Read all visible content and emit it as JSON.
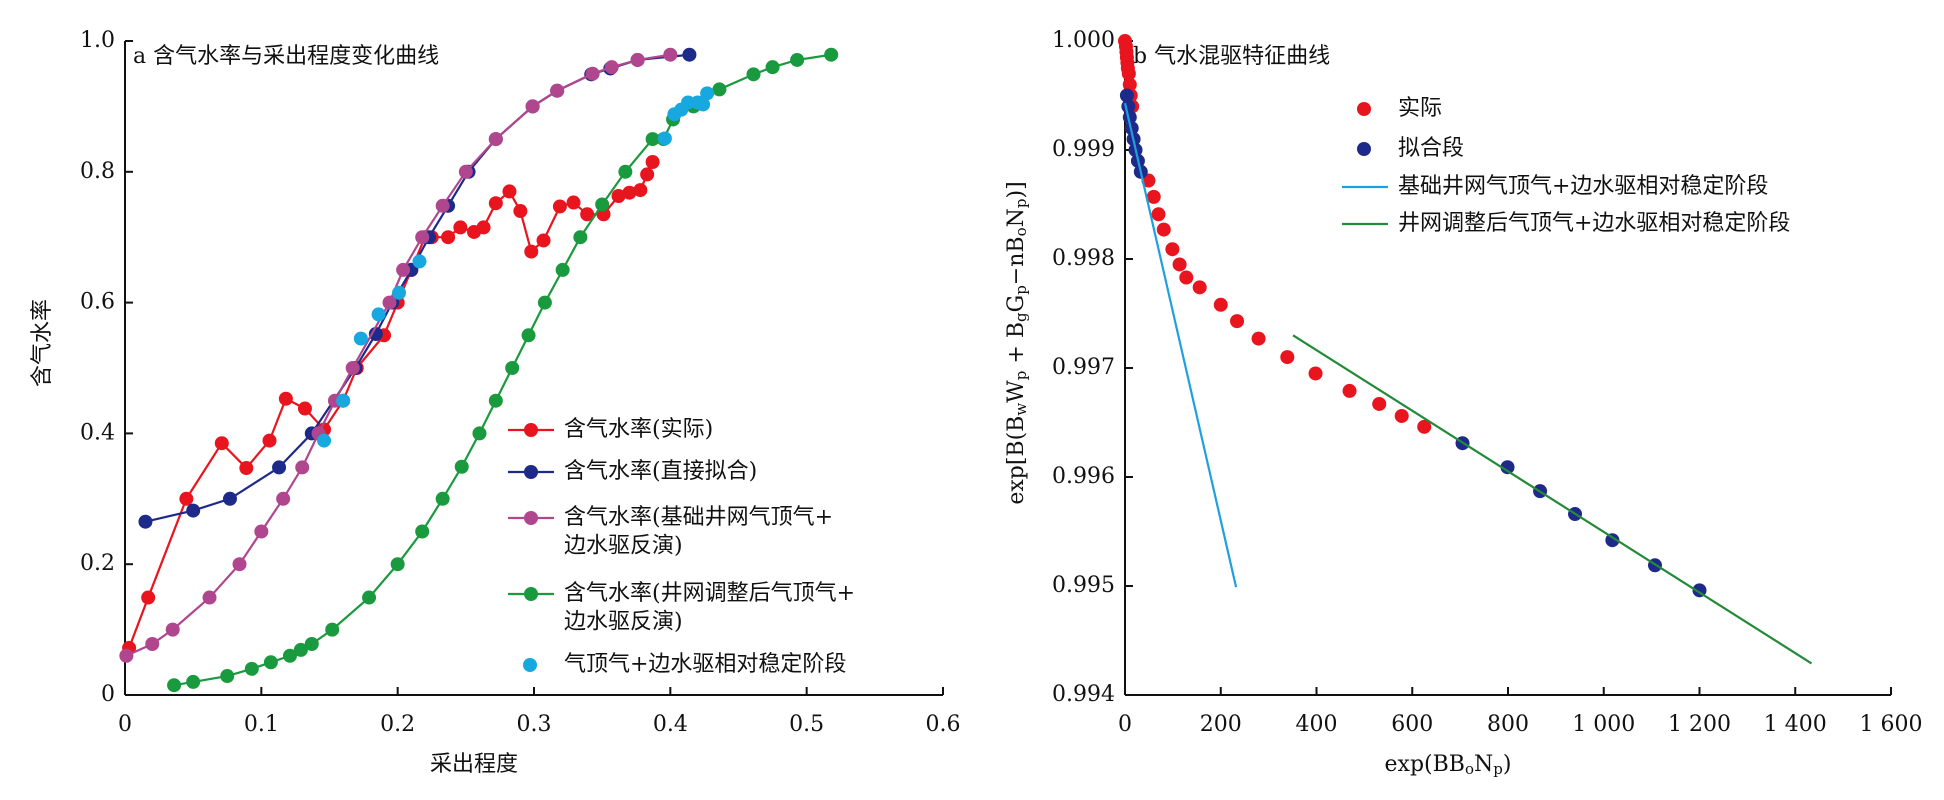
{
  "chart_data": [
    {
      "type": "line",
      "title": "a 含气水率与采出程度变化曲线",
      "xlabel": "采出程度",
      "ylabel": "含气水率",
      "xlim": [
        0,
        0.6
      ],
      "ylim": [
        0,
        1
      ],
      "xticks": [
        0,
        0.1,
        0.2,
        0.3,
        0.4,
        0.5,
        0.6
      ],
      "yticks": [
        0,
        0.2,
        0.4,
        0.6,
        0.8,
        {
          "value": 1,
          "label": "1.0"
        }
      ],
      "series": [
        {
          "name": "含气水率(实际)",
          "color": "#e8141e",
          "kind": "line",
          "marker": true,
          "x": [
            0.003,
            0.017,
            0.045,
            0.071,
            0.089,
            0.106,
            0.118,
            0.132,
            0.146,
            0.16,
            0.17,
            0.19,
            0.2,
            0.21,
            0.22,
            0.225,
            0.237,
            0.246,
            0.256,
            0.263,
            0.272,
            0.282,
            0.29,
            0.298,
            0.307,
            0.319,
            0.329,
            0.339,
            0.351,
            0.362,
            0.37,
            0.378,
            0.383,
            0.387
          ],
          "values": [
            0.072,
            0.149,
            0.3,
            0.385,
            0.347,
            0.389,
            0.453,
            0.438,
            0.406,
            0.45,
            0.5,
            0.55,
            0.6,
            0.65,
            0.7,
            0.7,
            0.7,
            0.715,
            0.708,
            0.715,
            0.752,
            0.77,
            0.74,
            0.678,
            0.695,
            0.747,
            0.753,
            0.735,
            0.735,
            0.763,
            0.768,
            0.772,
            0.796,
            0.815
          ]
        },
        {
          "name": "含气水率(直接拟合)",
          "color": "#1e2a8a",
          "kind": "line",
          "marker": true,
          "x": [
            0.015,
            0.05,
            0.077,
            0.113,
            0.137,
            0.169,
            0.184,
            0.196,
            0.21,
            0.223,
            0.237,
            0.252,
            0.272,
            0.299,
            0.317,
            0.342,
            0.356,
            0.376,
            0.414
          ],
          "values": [
            0.265,
            0.282,
            0.3,
            0.348,
            0.4,
            0.5,
            0.552,
            0.6,
            0.65,
            0.7,
            0.748,
            0.8,
            0.85,
            0.9,
            0.924,
            0.949,
            0.958,
            0.971,
            0.979
          ]
        },
        {
          "name": "含气水率(基础井网气顶气+\n边水驱反演)",
          "color": "#b0468e",
          "kind": "line",
          "marker": true,
          "x": [
            0.001,
            0.02,
            0.035,
            0.062,
            0.084,
            0.1,
            0.116,
            0.13,
            0.142,
            0.154,
            0.167,
            0.194,
            0.204,
            0.218,
            0.233,
            0.25,
            0.272,
            0.299,
            0.317,
            0.343,
            0.357,
            0.376,
            0.4
          ],
          "values": [
            0.06,
            0.078,
            0.1,
            0.149,
            0.2,
            0.25,
            0.3,
            0.348,
            0.4,
            0.45,
            0.5,
            0.6,
            0.65,
            0.7,
            0.748,
            0.8,
            0.85,
            0.9,
            0.924,
            0.95,
            0.96,
            0.971,
            0.979
          ]
        },
        {
          "name": "含气水率(井网调整后气顶气+\n边水驱反演)",
          "color": "#1a9a3e",
          "kind": "line",
          "marker": true,
          "x": [
            0.036,
            0.05,
            0.075,
            0.093,
            0.107,
            0.121,
            0.129,
            0.137,
            0.152,
            0.179,
            0.2,
            0.218,
            0.233,
            0.247,
            0.26,
            0.272,
            0.284,
            0.296,
            0.308,
            0.321,
            0.334,
            0.35,
            0.367,
            0.387,
            0.395,
            0.402,
            0.417,
            0.436,
            0.461,
            0.475,
            0.493,
            0.518
          ],
          "values": [
            0.015,
            0.02,
            0.029,
            0.04,
            0.05,
            0.06,
            0.069,
            0.078,
            0.1,
            0.149,
            0.2,
            0.25,
            0.3,
            0.349,
            0.4,
            0.45,
            0.5,
            0.55,
            0.6,
            0.65,
            0.7,
            0.75,
            0.8,
            0.85,
            0.85,
            0.88,
            0.9,
            0.926,
            0.949,
            0.96,
            0.971,
            0.979
          ]
        },
        {
          "name": "气顶气+边水驱相对稳定阶段",
          "color": "#17a8e0",
          "kind": "scatter",
          "marker": true,
          "x": [
            0.146,
            0.16,
            0.173,
            0.186,
            0.201,
            0.216,
            0.396,
            0.403,
            0.408,
            0.413,
            0.42,
            0.424,
            0.427
          ],
          "values": [
            0.389,
            0.45,
            0.545,
            0.582,
            0.615,
            0.663,
            0.851,
            0.888,
            0.895,
            0.906,
            0.906,
            0.903,
            0.92
          ]
        }
      ]
    },
    {
      "type": "scatter",
      "title": "b 气水混驱特征曲线",
      "xlabel": [
        "exp(BB",
        "o",
        "N",
        "p",
        ")"
      ],
      "ylabel": [
        "exp[B(B",
        "w",
        "W",
        "p",
        " + B",
        "g",
        "G",
        "p",
        "−nB",
        "o",
        "N",
        "p",
        ")]"
      ],
      "xlim": [
        0,
        1600
      ],
      "ylim": [
        0.994,
        1
      ],
      "xticks": [
        0,
        200,
        400,
        600,
        800,
        {
          "value": 1000,
          "label": "1 000"
        },
        {
          "value": 1200,
          "label": "1 200"
        },
        {
          "value": 1400,
          "label": "1 400"
        },
        {
          "value": 1600,
          "label": "1 600"
        }
      ],
      "yticks": [
        0.994,
        0.995,
        0.996,
        0.997,
        0.998,
        0.999,
        {
          "value": 1,
          "label": "1.000"
        }
      ],
      "series": [
        {
          "name": "实际",
          "color": "#e8141e",
          "kind": "scatter",
          "marker": true,
          "x": [
            0,
            2,
            3,
            4,
            5,
            6,
            8,
            10,
            12,
            15,
            49,
            60,
            70,
            81,
            99,
            114,
            128,
            156,
            200,
            234,
            279,
            339,
            398,
            469,
            531,
            578,
            625
          ],
          "values": [
            1,
            0.99995,
            0.9999,
            0.99985,
            0.9998,
            0.99975,
            0.9997,
            0.9996,
            0.9995,
            0.9994,
            0.99872,
            0.99857,
            0.99841,
            0.99827,
            0.99809,
            0.99795,
            0.99783,
            0.99774,
            0.99758,
            0.99743,
            0.99727,
            0.9971,
            0.99695,
            0.99679,
            0.99667,
            0.99656,
            0.99646
          ]
        },
        {
          "name": "拟合段",
          "color": "#1e2a8a",
          "kind": "scatter",
          "marker": true,
          "x": [
            4,
            7,
            10,
            14,
            18,
            22,
            27,
            33,
            705,
            799,
            867,
            940,
            1018,
            1107,
            1200
          ],
          "values": [
            0.9995,
            0.9994,
            0.9993,
            0.9992,
            0.9991,
            0.999,
            0.9989,
            0.9988,
            0.99631,
            0.99609,
            0.99587,
            0.99566,
            0.99542,
            0.99519,
            0.99496
          ]
        },
        {
          "name": "基础井网气顶气+边水驱相对稳定阶段",
          "color": "#1ea0e0",
          "kind": "line",
          "marker": false,
          "x": [
            0,
            232
          ],
          "values": [
            0.99943,
            0.99499
          ]
        },
        {
          "name": "井网调整后气顶气+边水驱相对稳定阶段",
          "color": "#238a3a",
          "kind": "line",
          "marker": false,
          "x": [
            351,
            1434
          ],
          "values": [
            0.9973,
            0.99429
          ]
        }
      ]
    }
  ]
}
